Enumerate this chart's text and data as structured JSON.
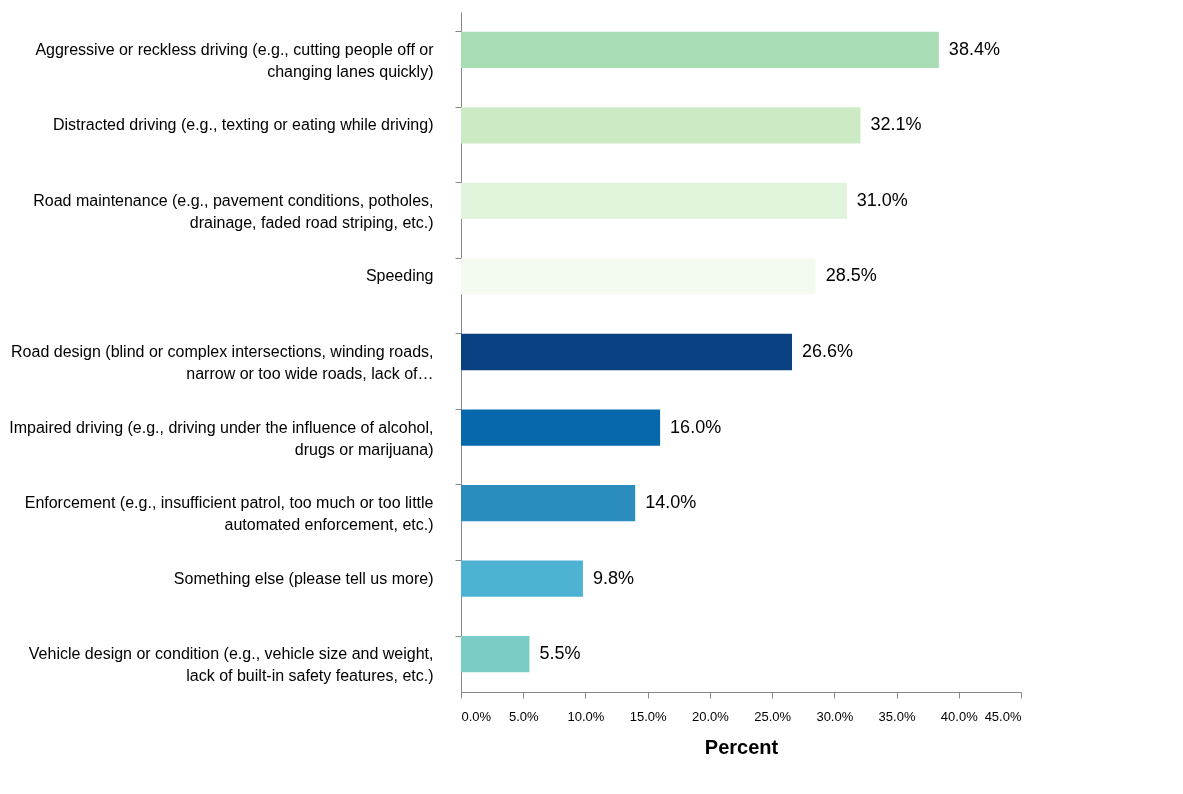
{
  "chart_data": {
    "type": "bar",
    "orientation": "horizontal",
    "xlabel": "Percent",
    "categories": [
      "Aggressive or reckless driving (e.g., cutting people off or changing lanes quickly)",
      "Distracted driving (e.g., texting or eating while driving)",
      "Road maintenance (e.g., pavement conditions, potholes, drainage, faded road striping, etc.)",
      "Speeding",
      "Road design (blind or complex intersections, winding roads, narrow or too wide roads, lack of…",
      "Impaired driving (e.g., driving under the influence of alcohol, drugs or marijuana)",
      "Enforcement (e.g., insufficient patrol, too much or too little automated enforcement, etc.)",
      "Something else (please tell us more)",
      "Vehicle design or condition (e.g., vehicle size and weight, lack of built-in safety features, etc.)"
    ],
    "values": [
      38.4,
      32.1,
      31.0,
      28.5,
      26.6,
      16.0,
      14.0,
      9.8,
      5.5
    ],
    "value_labels": [
      "38.4%",
      "32.1%",
      "31.0%",
      "28.5%",
      "26.6%",
      "16.0%",
      "14.0%",
      "9.8%",
      "5.5%"
    ],
    "colors": [
      "#a8dcb5",
      "#ccebc5",
      "#e0f3db",
      "#f3faf0",
      "#084081",
      "#0868ac",
      "#2b8cbe",
      "#4eb3d3",
      "#7bccc4"
    ],
    "xlim": [
      0,
      45
    ],
    "xticks": [
      {
        "value": 0,
        "label": "0.0%"
      },
      {
        "value": 5,
        "label": "5.0%"
      },
      {
        "value": 10,
        "label": "10.0%"
      },
      {
        "value": 15,
        "label": "15.0%"
      },
      {
        "value": 20,
        "label": "20.0%"
      },
      {
        "value": 25,
        "label": "25.0%"
      },
      {
        "value": 30,
        "label": "30.0%"
      },
      {
        "value": 35,
        "label": "35.0%"
      },
      {
        "value": 40,
        "label": "40.0%"
      },
      {
        "value": 45,
        "label": "45.0%"
      }
    ],
    "grid": false,
    "legend": false
  }
}
